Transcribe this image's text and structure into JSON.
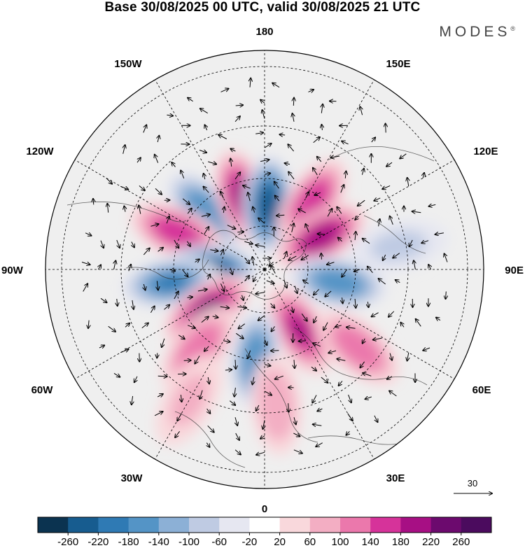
{
  "title": "Base 30/08/2025 00 UTC, valid 30/08/2025 21 UTC",
  "brand": "MODES",
  "brand_mark": "®",
  "longitude_labels": {
    "top": "180",
    "bottom": "0",
    "left": "90W",
    "right": "90E",
    "upper_left_1": "150W",
    "upper_left_2": "120W",
    "upper_right_1": "150E",
    "upper_right_2": "120E",
    "lower_left_1": "60W",
    "lower_left_2": "30W",
    "lower_right_1": "60E",
    "lower_right_2": "30E"
  },
  "reference_vector": {
    "label": "30"
  },
  "colorbar": {
    "ticks": [
      "-260",
      "-220",
      "-180",
      "-140",
      "-100",
      "-60",
      "-20",
      "20",
      "60",
      "100",
      "140",
      "180",
      "220",
      "260"
    ],
    "colors": [
      "#0b3350",
      "#175c8f",
      "#2f7ab4",
      "#5494c6",
      "#8cb0d6",
      "#bfcbe3",
      "#e6e7f1",
      "#ffffff",
      "#f9d8dc",
      "#f3aec3",
      "#eb78ac",
      "#d6339a",
      "#a70f84",
      "#6c0a6e",
      "#4b0b5e"
    ]
  },
  "anomalies": [
    {
      "lon": -135,
      "lat": 55,
      "value": -150
    },
    {
      "lon": -163,
      "lat": 58,
      "value": 195
    },
    {
      "lon": 177,
      "lat": 62,
      "value": -230
    },
    {
      "lon": 145,
      "lat": 55,
      "value": 170
    },
    {
      "lon": -113,
      "lat": 50,
      "value": 150
    },
    {
      "lon": 120,
      "lat": 62,
      "value": 190
    },
    {
      "lon": -90,
      "lat": 66,
      "value": -240
    },
    {
      "lon": -82,
      "lat": 50,
      "value": -180
    },
    {
      "lon": 80,
      "lat": 58,
      "value": -160
    },
    {
      "lon": -55,
      "lat": 60,
      "value": 220
    },
    {
      "lon": 30,
      "lat": 60,
      "value": 180
    },
    {
      "lon": -6,
      "lat": 52,
      "value": -170
    },
    {
      "lon": 50,
      "lat": 40,
      "value": 110
    },
    {
      "lon": -40,
      "lat": 47,
      "value": 130
    },
    {
      "lon": 5,
      "lat": 35,
      "value": 80
    },
    {
      "lon": -30,
      "lat": 30,
      "value": 60
    },
    {
      "lon": 100,
      "lat": 35,
      "value": -60
    }
  ]
}
